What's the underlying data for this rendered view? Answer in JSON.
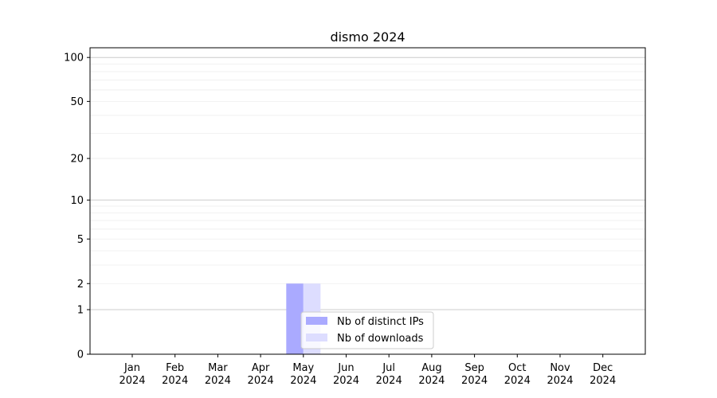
{
  "chart_data": {
    "type": "bar",
    "title": "dismo 2024",
    "xlabel": "",
    "ylabel": "",
    "y_scale": "symlog",
    "ylim": [
      0,
      116
    ],
    "y_ticks": [
      0,
      1,
      2,
      5,
      10,
      20,
      50,
      100
    ],
    "grid": true,
    "legend_placement": "lower center",
    "categories": [
      "Jan\n2024",
      "Feb\n2024",
      "Mar\n2024",
      "Apr\n2024",
      "May\n2024",
      "Jun\n2024",
      "Jul\n2024",
      "Aug\n2024",
      "Sep\n2024",
      "Oct\n2024",
      "Nov\n2024",
      "Dec\n2024"
    ],
    "series": [
      {
        "name": "Nb of distinct IPs",
        "color": "#aaaaff",
        "values": [
          0,
          0,
          0,
          0,
          2,
          0,
          0,
          0,
          0,
          0,
          0,
          0
        ]
      },
      {
        "name": "Nb of downloads",
        "color": "#ddddff",
        "values": [
          0,
          0,
          0,
          0,
          2,
          0,
          0,
          0,
          0,
          0,
          0,
          0
        ]
      }
    ]
  }
}
